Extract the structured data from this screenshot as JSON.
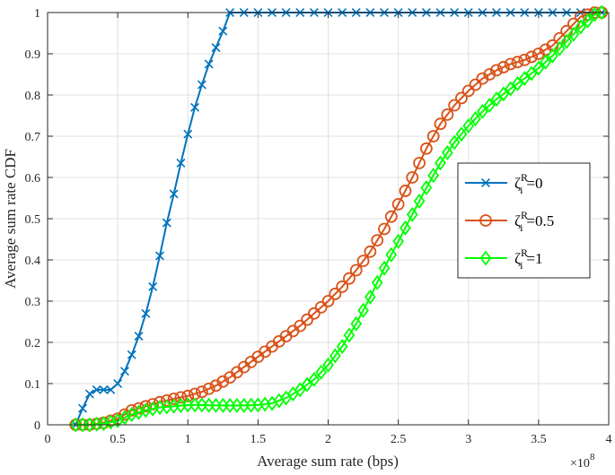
{
  "chart_data": {
    "type": "line",
    "xlabel": "Average sum rate (bps)",
    "ylabel": "Average sum rate CDF",
    "x_exponent_label": "×10",
    "x_exponent_power": "8",
    "xlim": [
      0,
      4
    ],
    "ylim": [
      0,
      1
    ],
    "xticks": [
      "0",
      "0.5",
      "1",
      "1.5",
      "2",
      "2.5",
      "3",
      "3.5",
      "4"
    ],
    "yticks": [
      "0",
      "0.1",
      "0.2",
      "0.3",
      "0.4",
      "0.5",
      "0.6",
      "0.7",
      "0.8",
      "0.9",
      "1"
    ],
    "grid": true,
    "legend_position": "right",
    "series": [
      {
        "name": "ζ_i^R=0",
        "legend_prefix": "ζ",
        "legend_sub": "i",
        "legend_sup": "R",
        "legend_suffix": "=0",
        "color": "#0072BD",
        "marker": "x",
        "x": [
          0.2,
          0.25,
          0.3,
          0.35,
          0.4,
          0.45,
          0.5,
          0.55,
          0.6,
          0.65,
          0.7,
          0.75,
          0.8,
          0.85,
          0.9,
          0.95,
          1.0,
          1.05,
          1.1,
          1.15,
          1.2,
          1.25,
          1.3,
          1.4,
          1.5,
          1.6,
          1.7,
          1.8,
          1.9,
          2.0,
          2.1,
          2.2,
          2.3,
          2.4,
          2.5,
          2.6,
          2.7,
          2.8,
          2.9,
          3.0,
          3.1,
          3.2,
          3.3,
          3.4,
          3.5,
          3.6,
          3.7,
          3.8,
          3.9,
          3.95
        ],
        "y": [
          0.0,
          0.04,
          0.075,
          0.085,
          0.085,
          0.085,
          0.1,
          0.13,
          0.17,
          0.215,
          0.27,
          0.335,
          0.41,
          0.49,
          0.56,
          0.635,
          0.705,
          0.77,
          0.825,
          0.875,
          0.915,
          0.955,
          1.0,
          1.0,
          1.0,
          1.0,
          1.0,
          1.0,
          1.0,
          1.0,
          1.0,
          1.0,
          1.0,
          1.0,
          1.0,
          1.0,
          1.0,
          1.0,
          1.0,
          1.0,
          1.0,
          1.0,
          1.0,
          1.0,
          1.0,
          1.0,
          1.0,
          1.0,
          1.0,
          1.0
        ]
      },
      {
        "name": "ζ_i^R=0.5",
        "legend_prefix": "ζ",
        "legend_sub": "i",
        "legend_sup": "R",
        "legend_suffix": "=0.5",
        "color": "#D95319",
        "marker": "o",
        "x": [
          0.2,
          0.3,
          0.4,
          0.5,
          0.6,
          0.7,
          0.8,
          0.9,
          1.0,
          1.1,
          1.2,
          1.3,
          1.4,
          1.5,
          1.6,
          1.7,
          1.8,
          1.9,
          2.0,
          2.1,
          2.2,
          2.3,
          2.4,
          2.5,
          2.6,
          2.7,
          2.8,
          2.9,
          3.0,
          3.1,
          3.2,
          3.3,
          3.4,
          3.5,
          3.6,
          3.7,
          3.8,
          3.9,
          3.95
        ],
        "y": [
          0.0,
          0.0,
          0.005,
          0.015,
          0.035,
          0.045,
          0.055,
          0.063,
          0.07,
          0.08,
          0.095,
          0.115,
          0.14,
          0.165,
          0.19,
          0.215,
          0.24,
          0.27,
          0.3,
          0.335,
          0.375,
          0.42,
          0.475,
          0.535,
          0.6,
          0.67,
          0.73,
          0.775,
          0.81,
          0.84,
          0.86,
          0.875,
          0.885,
          0.9,
          0.92,
          0.955,
          0.99,
          1.0,
          1.0
        ]
      },
      {
        "name": "ζ_i^R=1",
        "legend_prefix": "ζ",
        "legend_sub": "i",
        "legend_sup": "R",
        "legend_suffix": "=1",
        "color": "#00FF00",
        "marker": "diamond",
        "x": [
          0.2,
          0.3,
          0.4,
          0.5,
          0.6,
          0.7,
          0.8,
          0.9,
          1.0,
          1.1,
          1.2,
          1.3,
          1.4,
          1.5,
          1.6,
          1.7,
          1.8,
          1.9,
          2.0,
          2.1,
          2.2,
          2.3,
          2.4,
          2.5,
          2.6,
          2.7,
          2.8,
          2.9,
          3.0,
          3.1,
          3.2,
          3.3,
          3.4,
          3.5,
          3.6,
          3.7,
          3.8,
          3.9,
          3.95
        ],
        "y": [
          0.0,
          0.0,
          0.003,
          0.01,
          0.025,
          0.035,
          0.042,
          0.045,
          0.048,
          0.048,
          0.047,
          0.047,
          0.047,
          0.048,
          0.052,
          0.065,
          0.085,
          0.11,
          0.145,
          0.19,
          0.245,
          0.31,
          0.38,
          0.445,
          0.51,
          0.575,
          0.635,
          0.685,
          0.725,
          0.76,
          0.79,
          0.815,
          0.84,
          0.865,
          0.895,
          0.93,
          0.965,
          0.995,
          1.0
        ]
      }
    ]
  }
}
